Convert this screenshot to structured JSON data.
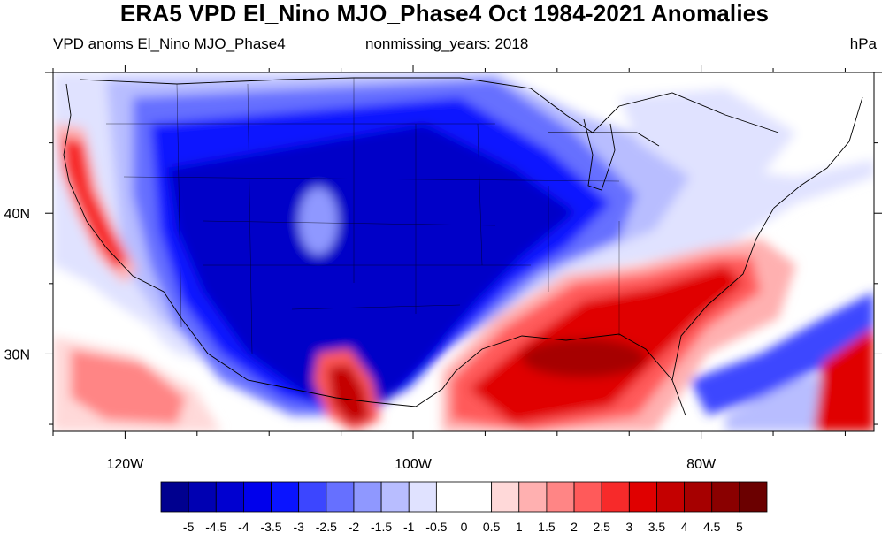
{
  "title": "ERA5 VPD El_Nino MJO_Phase4 Oct 1984-2021 Anomalies",
  "subtitle_left": "VPD anoms El_Nino MJO_Phase4",
  "subtitle_center": "nonmissing_years: 2018",
  "units": "hPa",
  "axes": {
    "lon_labels": [
      "120W",
      "100W",
      "80W"
    ],
    "lon_values": [
      -120,
      -100,
      -80
    ],
    "lat_labels": [
      "40N",
      "30N"
    ],
    "lat_values": [
      40,
      30
    ],
    "lon_range": [
      -125,
      -68
    ],
    "lat_range": [
      24.5,
      50
    ]
  },
  "colorbar": {
    "labels": [
      "-5",
      "-4.5",
      "-4",
      "-3.5",
      "-3",
      "-2.5",
      "-2",
      "-1.5",
      "-1",
      "-0.5",
      "0",
      "0.5",
      "1",
      "1.5",
      "2",
      "2.5",
      "3",
      "3.5",
      "4",
      "4.5",
      "5"
    ],
    "colors": [
      "#00008f",
      "#0000b2",
      "#0000d0",
      "#0000ec",
      "#0a14ff",
      "#3c46ff",
      "#6670ff",
      "#8f98ff",
      "#b8bdff",
      "#e0e2ff",
      "#ffffff",
      "#ffffff",
      "#ffd9d9",
      "#ffb0b0",
      "#ff8585",
      "#ff5a5a",
      "#f72a2a",
      "#e00000",
      "#c40000",
      "#a60000",
      "#8a0000",
      "#6b0000"
    ]
  },
  "colors": {
    "neg_strong": "#0000c8",
    "neg_mid": "#3c46ff",
    "neg_light": "#b8bdff",
    "neutral": "#ffffff",
    "pos_light": "#ffb0b0",
    "pos_mid": "#ff5a5a",
    "pos_strong": "#d80000"
  }
}
